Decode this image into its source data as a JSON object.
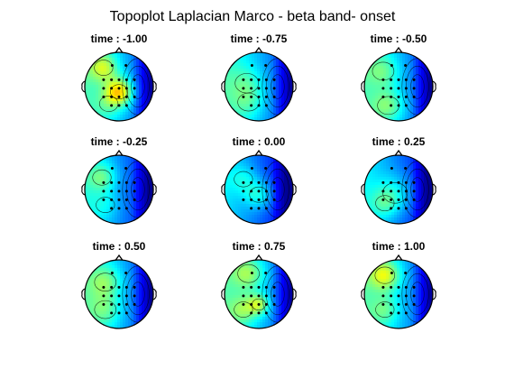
{
  "figure": {
    "title": "Topoplot Laplacian Marco - beta band- onset"
  },
  "chart_data": {
    "type": "heatmap",
    "subtype": "topographic-scalp-map",
    "title": "Topoplot Laplacian Marco - beta band- onset",
    "layout": {
      "rows": 3,
      "cols": 3
    },
    "colormap": [
      "#00008f",
      "#0000ff",
      "#0080ff",
      "#00ffff",
      "#80ff80",
      "#ffff00",
      "#ff8000"
    ],
    "panels": [
      {
        "title": "time : -1.00",
        "time": -1.0,
        "hotspots": [
          [
            -0.45,
            -0.55,
            0.75,
            0.3
          ],
          [
            0.0,
            0.15,
            0.95,
            0.28
          ],
          [
            -0.3,
            0.5,
            0.55,
            0.3
          ]
        ],
        "right_level": 0.05,
        "base_level": 0.42
      },
      {
        "title": "time : -0.75",
        "time": -0.75,
        "hotspots": [
          [
            -0.35,
            -0.1,
            0.55,
            0.38
          ],
          [
            -0.3,
            0.45,
            0.55,
            0.35
          ]
        ],
        "right_level": 0.08,
        "base_level": 0.4
      },
      {
        "title": "time : -0.50",
        "time": -0.5,
        "hotspots": [
          [
            -0.45,
            -0.45,
            0.6,
            0.35
          ],
          [
            -0.3,
            0.55,
            0.65,
            0.35
          ]
        ],
        "right_level": 0.06,
        "base_level": 0.4
      },
      {
        "title": "time : -0.25",
        "time": -0.25,
        "hotspots": [
          [
            -0.5,
            -0.35,
            0.6,
            0.3
          ],
          [
            -0.4,
            0.45,
            0.45,
            0.3
          ]
        ],
        "right_level": 0.06,
        "base_level": 0.35
      },
      {
        "title": "time : 0.00",
        "time": 0.0,
        "hotspots": [
          [
            0.0,
            0.15,
            0.55,
            0.3
          ],
          [
            -0.45,
            -0.3,
            0.45,
            0.3
          ]
        ],
        "right_level": 0.08,
        "base_level": 0.3
      },
      {
        "title": "time : 0.25",
        "time": 0.25,
        "hotspots": [
          [
            -0.1,
            0.1,
            0.5,
            0.4
          ],
          [
            -0.4,
            0.4,
            0.5,
            0.3
          ]
        ],
        "right_level": 0.06,
        "base_level": 0.32
      },
      {
        "title": "time : 0.50",
        "time": 0.5,
        "hotspots": [
          [
            -0.4,
            -0.35,
            0.65,
            0.35
          ],
          [
            -0.4,
            0.45,
            0.6,
            0.35
          ]
        ],
        "right_level": 0.06,
        "base_level": 0.4
      },
      {
        "title": "time : 0.75",
        "time": 0.75,
        "hotspots": [
          [
            -0.3,
            -0.6,
            0.7,
            0.35
          ],
          [
            0.0,
            0.3,
            0.75,
            0.22
          ],
          [
            -0.45,
            0.45,
            0.65,
            0.3
          ]
        ],
        "right_level": 0.06,
        "base_level": 0.42
      },
      {
        "title": "time : 1.00",
        "time": 1.0,
        "hotspots": [
          [
            -0.4,
            -0.55,
            0.8,
            0.32
          ],
          [
            -0.4,
            0.45,
            0.6,
            0.3
          ]
        ],
        "right_level": 0.05,
        "base_level": 0.42
      }
    ],
    "electrodes": [
      [
        -0.2,
        -0.62
      ],
      [
        0.2,
        -0.62
      ],
      [
        -0.45,
        -0.2
      ],
      [
        -0.22,
        -0.2
      ],
      [
        0.0,
        -0.2
      ],
      [
        0.22,
        -0.2
      ],
      [
        0.45,
        -0.2
      ],
      [
        -0.45,
        0.05
      ],
      [
        -0.22,
        0.05
      ],
      [
        0.0,
        0.05
      ],
      [
        0.22,
        0.05
      ],
      [
        0.45,
        0.05
      ],
      [
        -0.45,
        0.3
      ],
      [
        -0.22,
        0.3
      ],
      [
        0.0,
        0.3
      ],
      [
        0.22,
        0.3
      ],
      [
        0.45,
        0.3
      ],
      [
        -0.22,
        0.55
      ],
      [
        0.0,
        0.55
      ],
      [
        0.22,
        0.55
      ]
    ],
    "grid": false,
    "legend": "none"
  }
}
